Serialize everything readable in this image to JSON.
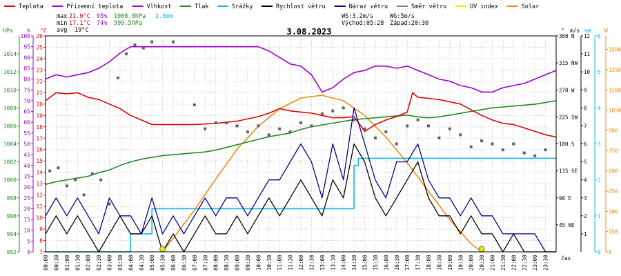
{
  "legend": [
    {
      "label": "Teplota",
      "color": "#e00000"
    },
    {
      "label": "Přízemní teplota",
      "color": "#9a00d0"
    },
    {
      "label": "Vlhkost",
      "color": "#9a00d0"
    },
    {
      "label": "Tlak",
      "color": "#218a21"
    },
    {
      "label": "Srážky",
      "color": "#16b4e6"
    },
    {
      "label": "Rychlost větru",
      "color": "#000000"
    },
    {
      "label": "Náraz větru",
      "color": "#00008b"
    },
    {
      "label": "Směr větru",
      "color": "#808080"
    },
    {
      "label": "UV index",
      "color": "#e8e800"
    },
    {
      "label": "Solar",
      "color": "#ef8a10"
    }
  ],
  "stats": {
    "max_label": "max",
    "max_temp": "21.0°C",
    "max_hum": "95%",
    "max_press": "1008.8hPa",
    "max_rain": "2.6mm",
    "min_label": "min",
    "min_temp": "17.1°C",
    "min_hum": "74%",
    "min_press": "999.5hPa",
    "avg_label": "avg",
    "avg_temp": "19°C"
  },
  "wind_info": {
    "ws": "WS:3.2m/s",
    "wg": "WG:5m/s",
    "sunrise": "Východ:05:28",
    "sunset": "Západ:20:30"
  },
  "date_title": "3.08.2023",
  "axis_units": {
    "hpa": "hPa",
    "pct": "%",
    "degc": "°C",
    "deg": "°",
    "ms": "m/s",
    "mm": "mm",
    "w": "W",
    "cas": "čas"
  },
  "chart_data": {
    "type": "line",
    "title": "3.08.2023",
    "x_ticks": [
      "00:00",
      "00:30",
      "01:00",
      "01:30",
      "02:00",
      "02:30",
      "03:00",
      "03:30",
      "04:00",
      "04:30",
      "05:00",
      "05:30",
      "06:00",
      "06:30",
      "07:00",
      "07:30",
      "08:00",
      "08:30",
      "09:00",
      "09:30",
      "10:00",
      "10:30",
      "11:00",
      "11:30",
      "12:00",
      "12:30",
      "13:00",
      "13:30",
      "14:00",
      "14:30",
      "15:00",
      "15:30",
      "16:00",
      "16:30",
      "17:00",
      "17:30",
      "18:00",
      "18:30",
      "19:00",
      "19:30",
      "20:00",
      "20:30",
      "21:00",
      "21:30",
      "22:00",
      "22:30",
      "23:00",
      "23:30"
    ],
    "xlim": [
      0,
      24
    ],
    "axes": {
      "pressure": {
        "unit": "hPa",
        "ylim": [
          992,
          1016
        ],
        "ticks": [
          992,
          994,
          996,
          998,
          1000,
          1002,
          1004,
          1006,
          1008,
          1010,
          1012,
          1014
        ]
      },
      "humidity": {
        "unit": "%",
        "ylim": [
          0,
          100
        ],
        "ticks": [
          0,
          5,
          10,
          15,
          20,
          25,
          30,
          35,
          40,
          45,
          50,
          55,
          60,
          65,
          70,
          75,
          80,
          85,
          90,
          95,
          100
        ]
      },
      "temperature": {
        "unit": "°C",
        "ylim": [
          7,
          26
        ],
        "ticks": [
          7,
          8,
          9,
          10,
          11,
          12,
          13,
          14,
          15,
          16,
          17,
          18,
          19,
          20,
          21,
          22,
          23,
          24,
          25,
          26
        ]
      },
      "direction": {
        "unit": "°",
        "ylim": [
          0,
          360
        ],
        "ticks": [
          45,
          90,
          135,
          180,
          225,
          270,
          315,
          360
        ],
        "labels": [
          "45 NE",
          "90 E",
          "135 SE",
          "180 S",
          "225 SW",
          "270 W",
          "315 NW",
          "360 N"
        ]
      },
      "wind_speed": {
        "unit": "m/s",
        "ylim": [
          0,
          12
        ],
        "ticks": [
          1,
          2,
          3,
          4,
          5,
          6,
          7,
          8,
          9,
          10,
          11,
          12
        ]
      },
      "rain": {
        "unit": "mm",
        "ylim": [
          0,
          6
        ],
        "ticks": [
          0,
          1,
          2,
          3,
          4,
          5,
          6
        ]
      },
      "solar": {
        "unit": "W",
        "ylim": [
          0,
          1600
        ],
        "ticks": [
          0,
          150,
          300,
          450,
          600,
          750,
          900,
          1050,
          1200,
          1350,
          1500
        ]
      }
    },
    "series": [
      {
        "name": "Teplota",
        "axis": "temperature",
        "color": "#e00000",
        "x": [
          0,
          0.5,
          1,
          1.5,
          2,
          2.5,
          3,
          3.5,
          4,
          4.5,
          5,
          6,
          7,
          8,
          9,
          10,
          10.5,
          11,
          11.5,
          12,
          12.5,
          13,
          13.5,
          14,
          14.5,
          15,
          15.5,
          16,
          16.5,
          17,
          17.25,
          17.5,
          18,
          18.5,
          19,
          19.5,
          20,
          20.5,
          21,
          21.5,
          22,
          22.5,
          23,
          23.5,
          24
        ],
        "y": [
          20.3,
          21,
          20.9,
          21,
          20.6,
          20.4,
          20,
          19.6,
          19,
          18.6,
          18.2,
          18.2,
          18.2,
          18.3,
          18.5,
          18.9,
          19.2,
          19.6,
          19.4,
          19.3,
          19.2,
          19,
          18.8,
          18.8,
          18.9,
          17.6,
          18.2,
          18.6,
          18.9,
          19.3,
          21,
          20.6,
          20.5,
          20.4,
          20.2,
          20,
          19.5,
          19,
          18.6,
          18.3,
          18.2,
          17.9,
          17.6,
          17.3,
          17.1
        ]
      },
      {
        "name": "Vlhkost",
        "axis": "humidity",
        "color": "#9a00d0",
        "x": [
          0,
          0.5,
          1,
          1.5,
          2,
          2.5,
          3,
          3.5,
          4,
          4.5,
          5,
          6,
          7,
          8,
          9,
          10,
          10.5,
          11,
          11.5,
          12,
          12.5,
          13,
          13.5,
          14,
          14.5,
          15,
          15.5,
          16,
          16.5,
          17,
          17.5,
          18,
          18.5,
          19,
          19.5,
          20,
          20.5,
          21,
          21.5,
          22,
          22.5,
          23,
          23.5,
          24
        ],
        "y": [
          80,
          82,
          81,
          82,
          83,
          85,
          88,
          92,
          95,
          95,
          95,
          95,
          95,
          95,
          95,
          95,
          93,
          90,
          87,
          86,
          82,
          74,
          76,
          80,
          83,
          84,
          86,
          86,
          85,
          86,
          84,
          82,
          80,
          79,
          77,
          76,
          74,
          74,
          76,
          77,
          78,
          80,
          82,
          84
        ]
      },
      {
        "name": "Tlak",
        "axis": "pressure",
        "color": "#218a21",
        "x": [
          0,
          0.5,
          1,
          1.5,
          2,
          2.5,
          3,
          3.5,
          4,
          4.5,
          5,
          5.5,
          6,
          6.5,
          7,
          7.5,
          8,
          8.5,
          9,
          9.5,
          10,
          10.5,
          11,
          11.5,
          12,
          12.5,
          13,
          13.5,
          14,
          14.5,
          15,
          15.5,
          16,
          16.5,
          17,
          17.5,
          18,
          18.5,
          19,
          19.5,
          20,
          20.5,
          21,
          21.5,
          22,
          22.5,
          23,
          23.5,
          24
        ],
        "y": [
          999.5,
          999.8,
          1000,
          1000.2,
          1000.4,
          1000.8,
          1001.1,
          1001.6,
          1002,
          1002.3,
          1002.5,
          1002.7,
          1002.8,
          1002.9,
          1003,
          1003.1,
          1003.3,
          1003.6,
          1003.9,
          1004.2,
          1004.5,
          1004.8,
          1005,
          1005.2,
          1005.6,
          1005.9,
          1006.1,
          1006.3,
          1006.5,
          1006.7,
          1006.8,
          1006.9,
          1007,
          1007.1,
          1007.2,
          1007.0,
          1006.9,
          1007.0,
          1007.2,
          1007.4,
          1007.6,
          1007.8,
          1008,
          1008.1,
          1008.2,
          1008.3,
          1008.4,
          1008.6,
          1008.8
        ]
      },
      {
        "name": "Srážky",
        "axis": "rain",
        "color": "#16b4e6",
        "step": true,
        "x": [
          0,
          4.0,
          4.0,
          5.0,
          5.0,
          14.5,
          14.5,
          14.7,
          14.7,
          24
        ],
        "y": [
          0,
          0,
          0.5,
          0.5,
          1.2,
          1.2,
          2.4,
          2.4,
          2.6,
          2.6
        ]
      },
      {
        "name": "Solar",
        "axis": "solar",
        "color": "#ef8a10",
        "x": [
          5.5,
          6,
          7,
          8,
          9,
          10,
          11,
          12,
          13,
          14,
          15,
          16,
          17,
          18,
          19,
          20,
          20.5
        ],
        "y": [
          0,
          100,
          310,
          540,
          760,
          930,
          1060,
          1140,
          1160,
          1120,
          1010,
          850,
          660,
          450,
          240,
          60,
          0
        ]
      },
      {
        "name": "Rychlost větru",
        "axis": "wind_speed",
        "color": "#000000",
        "x": [
          0,
          0.5,
          1,
          1.5,
          2,
          2.5,
          3,
          3.5,
          4,
          4.5,
          5,
          5.5,
          6,
          6.5,
          7,
          7.5,
          8,
          8.5,
          9,
          9.5,
          10,
          10.5,
          11,
          11.5,
          12,
          12.5,
          13,
          13.5,
          14,
          14.5,
          15,
          15.5,
          16,
          16.5,
          17,
          17.5,
          18,
          18.5,
          19,
          19.5,
          20,
          20.5,
          21,
          21.5,
          22,
          22.5,
          23,
          23.5,
          24
        ],
        "y": [
          1,
          2,
          1,
          2,
          1,
          0,
          1,
          2,
          1,
          1,
          2,
          0,
          1,
          0,
          1,
          2,
          1,
          1,
          2,
          1,
          2,
          3,
          2,
          3,
          4,
          3,
          2,
          4,
          3,
          6,
          5,
          3,
          2,
          3,
          4,
          5,
          3,
          2,
          2,
          1,
          2,
          1,
          1,
          0,
          1,
          0,
          0,
          0,
          0
        ]
      },
      {
        "name": "Náraz větru",
        "axis": "wind_speed",
        "color": "#00008b",
        "x": [
          0,
          0.5,
          1,
          1.5,
          2,
          2.5,
          3,
          3.5,
          4,
          4.5,
          5,
          5.5,
          6,
          6.5,
          7,
          7.5,
          8,
          8.5,
          9,
          9.5,
          10,
          10.5,
          11,
          11.5,
          12,
          12.5,
          13,
          13.5,
          14,
          14.5,
          15,
          15.5,
          16,
          16.5,
          17,
          17.5,
          18,
          18.5,
          19,
          19.5,
          20,
          20.5,
          21,
          21.5,
          22,
          22.5,
          23,
          23.5,
          24
        ],
        "y": [
          2,
          3,
          2,
          3,
          2,
          1,
          3,
          2,
          2,
          1,
          3,
          1,
          2,
          1,
          2,
          3,
          2,
          3,
          3,
          2,
          3,
          4,
          4,
          5,
          6,
          5,
          3,
          6,
          4,
          8,
          6,
          4,
          3,
          5,
          5,
          6,
          4,
          3,
          3,
          2,
          3,
          2,
          2,
          1,
          1,
          1,
          1,
          0,
          0
        ]
      },
      {
        "name": "Směr větru",
        "axis": "direction",
        "color": "#606060",
        "points": true,
        "x": [
          0.2,
          0.6,
          1,
          1.4,
          1.8,
          2.2,
          2.6,
          3.0,
          3.4,
          3.8,
          4.2,
          4.6,
          5.0,
          6,
          7,
          7.5,
          8,
          8.5,
          9,
          9.5,
          10,
          10.5,
          11,
          11.5,
          12,
          12.5,
          13,
          13.5,
          14,
          14.5,
          15,
          15.5,
          16,
          16.5,
          17,
          17.5,
          18,
          18.5,
          19,
          19.5,
          20,
          20.5,
          21,
          21.5,
          22,
          22.5,
          23,
          23.5
        ],
        "y": [
          135,
          140,
          110,
          120,
          95,
          130,
          120,
          80,
          290,
          330,
          345,
          340,
          350,
          350,
          245,
          205,
          215,
          215,
          210,
          200,
          210,
          195,
          205,
          200,
          215,
          210,
          230,
          235,
          240,
          220,
          205,
          190,
          200,
          180,
          210,
          220,
          210,
          190,
          205,
          195,
          175,
          185,
          180,
          170,
          180,
          165,
          160,
          170
        ]
      },
      {
        "name": "UV index",
        "axis": "solar",
        "color": "#e8e800",
        "points": true,
        "x": [
          5.5,
          20.5
        ],
        "y": [
          0,
          0
        ]
      }
    ]
  }
}
